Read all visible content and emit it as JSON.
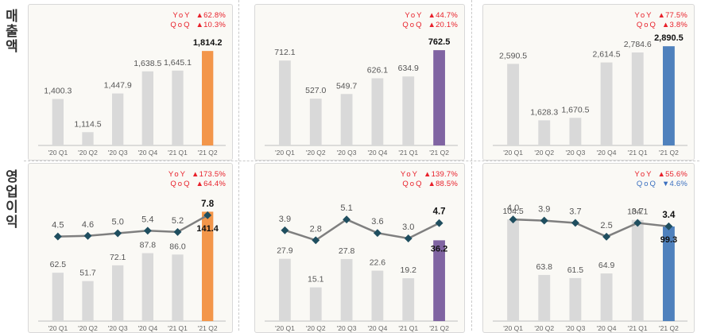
{
  "row_labels": {
    "revenue": "매출액",
    "operating_profit": "영업이익"
  },
  "colors": {
    "bar_default": "#d9d9d9",
    "highlight": [
      "#f3964a",
      "#8064a2",
      "#4f81bd"
    ],
    "line": "#7f7f7f",
    "marker": "#1f4e5f",
    "up": "#e8202a",
    "down": "#3a6fbf"
  },
  "chart_data": [
    {
      "type": "bar",
      "row": "revenue",
      "categories": [
        "'20 Q1",
        "'20 Q2",
        "'20 Q3",
        "'20 Q4",
        "'21 Q1",
        "'21 Q2"
      ],
      "values": [
        1400.3,
        1114.5,
        1447.9,
        1638.5,
        1645.1,
        1814.2
      ],
      "labels": [
        "1,400.3",
        "1,114.5",
        "1,447.9",
        "1,638.5",
        "1,645.1",
        "1,814.2"
      ],
      "ylim": [
        1000,
        1870
      ],
      "highlight_index": 5,
      "badges": [
        {
          "label": "YoY",
          "arrow": "▲",
          "value": "62.8%",
          "dir": "up"
        },
        {
          "label": "QoQ",
          "arrow": "▲",
          "value": "10.3%",
          "dir": "up"
        }
      ]
    },
    {
      "type": "bar",
      "row": "revenue",
      "categories": [
        "'20 Q1",
        "'20 Q2",
        "'20 Q3",
        "'20 Q4",
        "'21 Q1",
        "'21 Q2"
      ],
      "values": [
        712.1,
        527.0,
        549.7,
        626.1,
        634.9,
        762.5
      ],
      "labels": [
        "712.1",
        "527.0",
        "549.7",
        "626.1",
        "634.9",
        "762.5"
      ],
      "ylim": [
        300,
        790
      ],
      "highlight_index": 5,
      "badges": [
        {
          "label": "YoY",
          "arrow": "▲",
          "value": "44.7%",
          "dir": "up"
        },
        {
          "label": "QoQ",
          "arrow": "▲",
          "value": "20.1%",
          "dir": "up"
        }
      ]
    },
    {
      "type": "bar",
      "row": "revenue",
      "categories": [
        "'20 Q1",
        "'20 Q2",
        "'20 Q3",
        "'20 Q4",
        "'21 Q1",
        "'21 Q2"
      ],
      "values": [
        2590.5,
        1628.3,
        1670.5,
        2614.5,
        2784.6,
        2890.5
      ],
      "labels": [
        "2,590.5",
        "1,628.3",
        "1,670.5",
        "2,614.5",
        "2,784.6",
        "2,890.5"
      ],
      "ylim": [
        1200,
        2920
      ],
      "highlight_index": 5,
      "badges": [
        {
          "label": "YoY",
          "arrow": "▲",
          "value": "77.5%",
          "dir": "up"
        },
        {
          "label": "QoQ",
          "arrow": "▲",
          "value": "3.8%",
          "dir": "up"
        }
      ]
    },
    {
      "type": "bar+line",
      "row": "operating_profit",
      "categories": [
        "'20 Q1",
        "'20 Q2",
        "'20 Q3",
        "'20 Q4",
        "'21 Q1",
        "'21 Q2"
      ],
      "values": [
        62.5,
        51.7,
        72.1,
        87.8,
        86.0,
        141.4
      ],
      "labels": [
        "62.5",
        "51.7",
        "72.1",
        "87.8",
        "86.0",
        "141.4"
      ],
      "ylim": [
        0,
        150
      ],
      "line_values": [
        4.5,
        4.6,
        5.0,
        5.4,
        5.2,
        7.8
      ],
      "line_labels": [
        "4.5",
        "4.6",
        "5.0",
        "5.4",
        "5.2",
        "7.8"
      ],
      "line_ylim": [
        0,
        8.4
      ],
      "highlight_index": 5,
      "badges": [
        {
          "label": "YoY",
          "arrow": "▲",
          "value": "173.5%",
          "dir": "up"
        },
        {
          "label": "QoQ",
          "arrow": "▲",
          "value": "64.4%",
          "dir": "up"
        }
      ]
    },
    {
      "type": "bar+line",
      "row": "operating_profit",
      "categories": [
        "'20 Q1",
        "'20 Q2",
        "'20 Q3",
        "'20 Q4",
        "'21 Q1",
        "'21 Q2"
      ],
      "values": [
        27.9,
        15.1,
        27.8,
        22.6,
        19.2,
        36.2
      ],
      "labels": [
        "27.9",
        "15.1",
        "27.8",
        "22.6",
        "19.2",
        "36.2"
      ],
      "ylim": [
        0,
        52
      ],
      "line_values": [
        3.9,
        2.8,
        5.1,
        3.6,
        3.0,
        4.7
      ],
      "line_labels": [
        "3.9",
        "2.8",
        "5.1",
        "3.6",
        "3.0",
        "4.7"
      ],
      "line_ylim": [
        0,
        6.0
      ],
      "highlight_index": 5,
      "badges": [
        {
          "label": "YoY",
          "arrow": "▲",
          "value": "139.7%",
          "dir": "up"
        },
        {
          "label": "QoQ",
          "arrow": "▲",
          "value": "88.5%",
          "dir": "up"
        }
      ]
    },
    {
      "type": "bar+line",
      "row": "operating_profit",
      "categories": [
        "'20 Q1",
        "'20 Q2",
        "'20 Q3",
        "'20 Q4",
        "'21 Q1",
        "'21 Q2"
      ],
      "values": [
        104.5,
        63.8,
        61.5,
        64.9,
        104.1,
        99.3
      ],
      "labels": [
        "104.5",
        "63.8",
        "61.5",
        "64.9",
        "104.1",
        "99.3"
      ],
      "ylim": [
        30,
        115
      ],
      "line_values": [
        4.0,
        3.9,
        3.7,
        2.5,
        3.7,
        3.4
      ],
      "line_labels": [
        "4.0",
        "3.9",
        "3.7",
        "2.5",
        "3.7",
        "3.4"
      ],
      "line_ylim": [
        0,
        4.7
      ],
      "highlight_index": 5,
      "badges": [
        {
          "label": "YoY",
          "arrow": "▲",
          "value": "55.6%",
          "dir": "up"
        },
        {
          "label": "QoQ",
          "arrow": "▼",
          "value": "4.6%",
          "dir": "down"
        }
      ]
    }
  ]
}
